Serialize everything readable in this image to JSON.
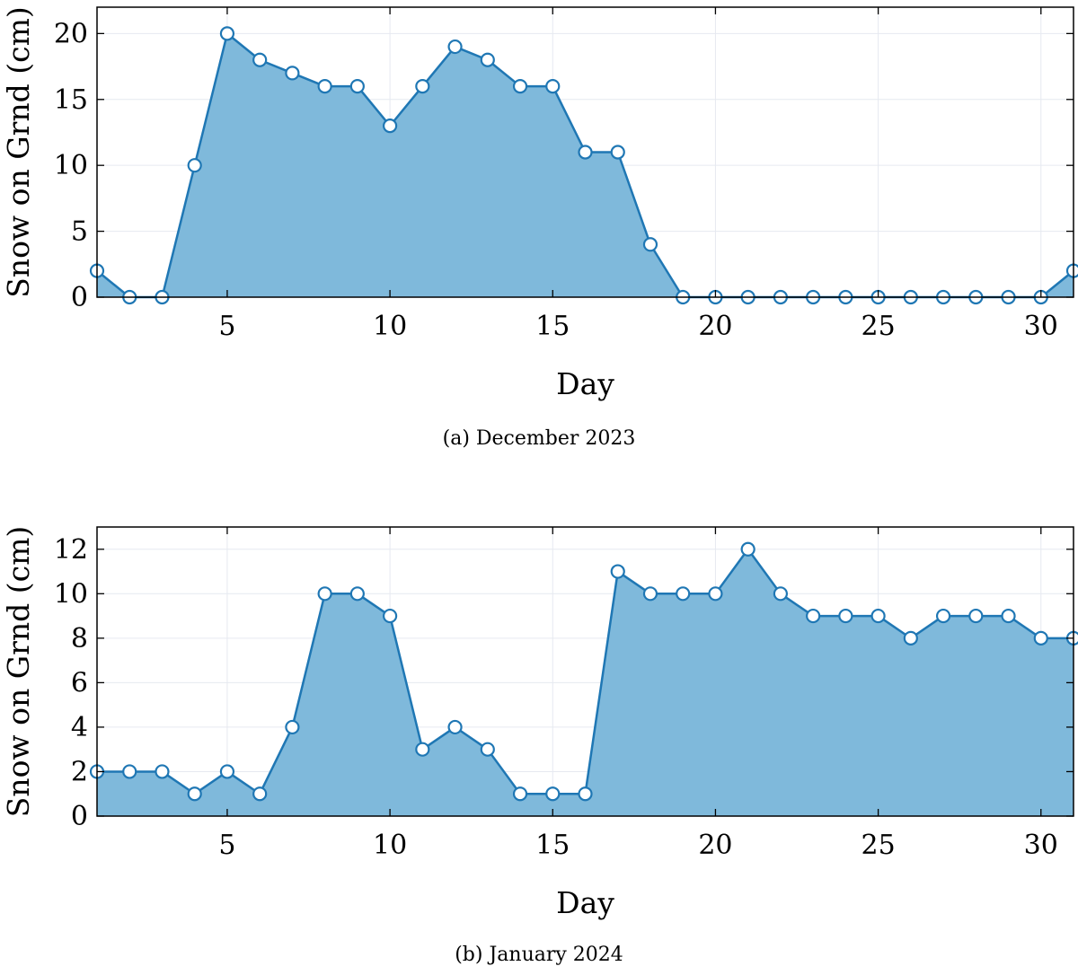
{
  "chart_data": [
    {
      "type": "area",
      "caption": "(a) December 2023",
      "xlabel": "Day",
      "ylabel": "Snow on Grnd (cm)",
      "xlim": [
        1,
        31
      ],
      "ylim": [
        0,
        22
      ],
      "xticks": [
        5,
        10,
        15,
        20,
        25,
        30
      ],
      "yticks": [
        0,
        5,
        10,
        15,
        20
      ],
      "grid": true,
      "color": "#1f77b4",
      "fill_color": "#7fb9db",
      "series": [
        {
          "x": [
            1,
            2,
            3,
            4,
            5,
            6,
            7,
            8,
            9,
            10,
            11,
            12,
            13,
            14,
            15,
            16,
            17,
            18,
            19,
            20,
            21,
            22,
            23,
            24,
            25,
            26,
            27,
            28,
            29,
            30,
            31
          ],
          "values": [
            2,
            0,
            0,
            10,
            20,
            18,
            17,
            16,
            16,
            13,
            16,
            19,
            18,
            16,
            16,
            11,
            11,
            4,
            0,
            0,
            0,
            0,
            0,
            0,
            0,
            0,
            0,
            0,
            0,
            0,
            2
          ]
        }
      ]
    },
    {
      "type": "area",
      "caption": "(b) January 2024",
      "xlabel": "Day",
      "ylabel": "Snow on Grnd (cm)",
      "xlim": [
        1,
        31
      ],
      "ylim": [
        0,
        13
      ],
      "xticks": [
        5,
        10,
        15,
        20,
        25,
        30
      ],
      "yticks": [
        0,
        2,
        4,
        6,
        8,
        10,
        12
      ],
      "grid": true,
      "color": "#1f77b4",
      "fill_color": "#7fb9db",
      "series": [
        {
          "x": [
            1,
            2,
            3,
            4,
            5,
            6,
            7,
            8,
            9,
            10,
            11,
            12,
            13,
            14,
            15,
            16,
            17,
            18,
            19,
            20,
            21,
            22,
            23,
            24,
            25,
            26,
            27,
            28,
            29,
            30,
            31
          ],
          "values": [
            2,
            2,
            2,
            1,
            2,
            1,
            4,
            10,
            10,
            9,
            3,
            4,
            3,
            1,
            1,
            1,
            11,
            10,
            10,
            10,
            12,
            10,
            9,
            9,
            9,
            8,
            9,
            9,
            9,
            8,
            8
          ]
        }
      ]
    }
  ]
}
